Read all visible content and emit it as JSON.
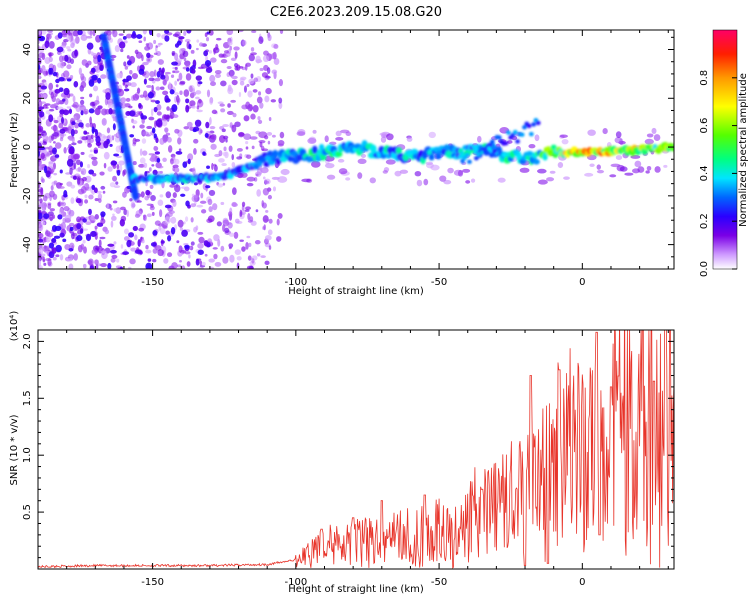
{
  "figure": {
    "title": "C2E6.2023.209.15.08.G20"
  },
  "chart_data": [
    {
      "type": "heatmap",
      "xlabel": "Height of straight line (km)",
      "ylabel": "Frequency (Hz)",
      "xlim": [
        -190,
        32
      ],
      "ylim": [
        -50,
        48
      ],
      "xticks": [
        -150,
        -100,
        -50,
        0
      ],
      "yticks": [
        -40,
        -20,
        0,
        20,
        40
      ],
      "colorbar": {
        "label": "Normalized spectral amplitude",
        "range": [
          0,
          1
        ],
        "ticks": [
          0.0,
          0.2,
          0.4,
          0.6,
          0.8
        ],
        "tick_labels": [
          "0.0",
          "0.2",
          "0.4",
          "0.6",
          "0.8"
        ]
      },
      "features": {
        "diagonal": {
          "from": [
            -167,
            45
          ],
          "to": [
            -156,
            -20
          ],
          "amplitude": 0.25
        },
        "ridge": [
          {
            "x": -157,
            "y": -13,
            "amplitude": 0.35
          },
          {
            "x": -140,
            "y": -13,
            "amplitude": 0.4
          },
          {
            "x": -125,
            "y": -12,
            "amplitude": 0.35
          },
          {
            "x": -110,
            "y": -5,
            "amplitude": 0.35
          },
          {
            "x": -95,
            "y": -3,
            "amplitude": 0.45
          },
          {
            "x": -80,
            "y": 0,
            "amplitude": 0.45
          },
          {
            "x": -60,
            "y": -4,
            "amplitude": 0.4
          },
          {
            "x": -45,
            "y": -2,
            "amplitude": 0.4
          },
          {
            "x": -30,
            "y": -2,
            "amplitude": 0.45
          },
          {
            "x": -20,
            "y": -5,
            "amplitude": 0.4
          },
          {
            "x": -10,
            "y": -2,
            "amplitude": 0.65
          },
          {
            "x": 0,
            "y": -2,
            "amplitude": 0.85
          },
          {
            "x": 10,
            "y": -2,
            "amplitude": 0.8
          },
          {
            "x": 20,
            "y": -1,
            "amplitude": 0.75
          },
          {
            "x": 32,
            "y": 0,
            "amplitude": 0.6
          }
        ]
      }
    },
    {
      "type": "line",
      "xlabel": "Height of straight line (km)",
      "ylabel": "SNR (10 * v/v)",
      "y_multiplier_label": "(x10⁴)",
      "xlim": [
        -190,
        32
      ],
      "ylim": [
        0,
        2.1
      ],
      "xticks": [
        -150,
        -100,
        -50,
        0
      ],
      "yticks": [
        0.5,
        1.0,
        1.5,
        2.0
      ],
      "ytick_labels": [
        "0.5",
        "1.0",
        "1.5",
        "2.0"
      ],
      "line_color": "#e8342a",
      "series": [
        {
          "x": [
            -190,
            -170,
            -150,
            -130,
            -110,
            -100,
            -95,
            -90,
            -85,
            -80,
            -75,
            -70,
            -65,
            -60,
            -55,
            -50,
            -45,
            -40,
            -35,
            -30,
            -25,
            -20,
            -15,
            -10,
            -5,
            0,
            5,
            10,
            15,
            20,
            25,
            32
          ],
          "values": [
            0.02,
            0.03,
            0.03,
            0.03,
            0.04,
            0.08,
            0.15,
            0.2,
            0.22,
            0.24,
            0.25,
            0.26,
            0.28,
            0.3,
            0.32,
            0.35,
            0.38,
            0.42,
            0.48,
            0.55,
            0.6,
            0.68,
            0.75,
            0.85,
            0.95,
            1.0,
            1.1,
            1.2,
            1.3,
            1.38,
            1.45,
            1.5
          ]
        }
      ],
      "peaks": [
        {
          "x": -91,
          "y": 0.35
        },
        {
          "x": -80,
          "y": 0.45
        },
        {
          "x": -70,
          "y": 0.6
        },
        {
          "x": -55,
          "y": 0.65
        },
        {
          "x": -35,
          "y": 0.7
        },
        {
          "x": -20,
          "y": 1.6
        },
        {
          "x": -18,
          "y": 1.7
        },
        {
          "x": -8,
          "y": 1.75
        },
        {
          "x": 5,
          "y": 2.08
        },
        {
          "x": 10,
          "y": 1.6
        },
        {
          "x": 25,
          "y": 1.65
        }
      ],
      "dips": [
        {
          "x": -20,
          "y": 0.03
        },
        {
          "x": -12,
          "y": 0.05
        },
        {
          "x": 6,
          "y": 0.3
        }
      ]
    }
  ]
}
